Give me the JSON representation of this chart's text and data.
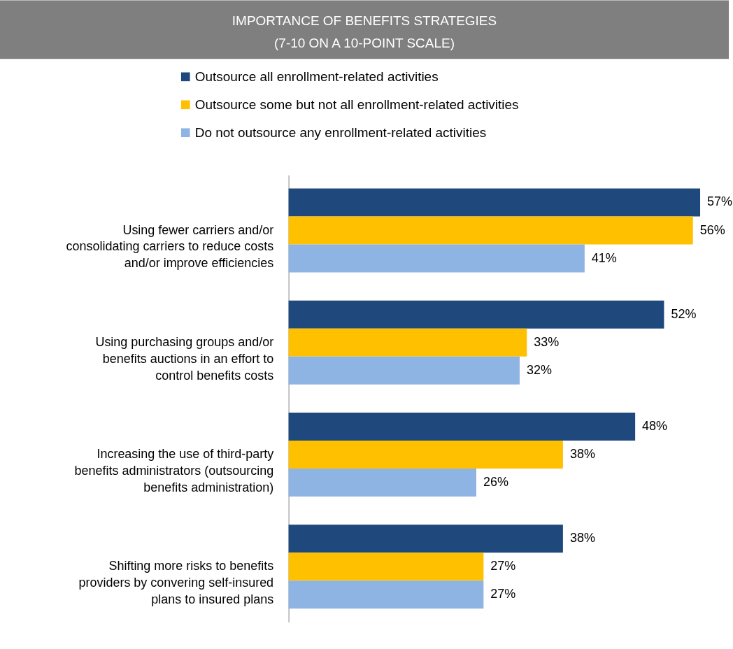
{
  "chart_data": {
    "type": "bar",
    "orientation": "horizontal",
    "title": "IMPORTANCE OF BENEFITS STRATEGIES",
    "subtitle": "(7-10 ON A 10-POINT SCALE)",
    "categories": [
      "Using fewer carriers and/or consolidating carriers to reduce costs and/or improve efficiencies",
      "Using purchasing groups and/or benefits auctions in an effort to control benefits costs",
      "Increasing the use of third-party benefits administrators (outsourcing benefits administration)",
      "Shifting more risks to benefits providers by convering self-insured plans to insured plans"
    ],
    "series": [
      {
        "name": "Outsource all enrollment-related activities",
        "color": "#1f497d",
        "values": [
          57,
          52,
          48,
          38
        ],
        "value_labels": [
          "57%",
          "52%",
          "48%",
          "38%"
        ]
      },
      {
        "name": "Outsource some but not all enrollment-related activities",
        "color": "#ffc000",
        "values": [
          56,
          33,
          38,
          27
        ],
        "value_labels": [
          "56%",
          "33%",
          "38%",
          "27%"
        ]
      },
      {
        "name": "Do not outsource any enrollment-related activities",
        "color": "#8eb4e3",
        "values": [
          41,
          32,
          26,
          27
        ],
        "value_labels": [
          "41%",
          "32%",
          "26%",
          "27%"
        ]
      }
    ],
    "tick_labels": "y",
    "legend": "top"
  }
}
